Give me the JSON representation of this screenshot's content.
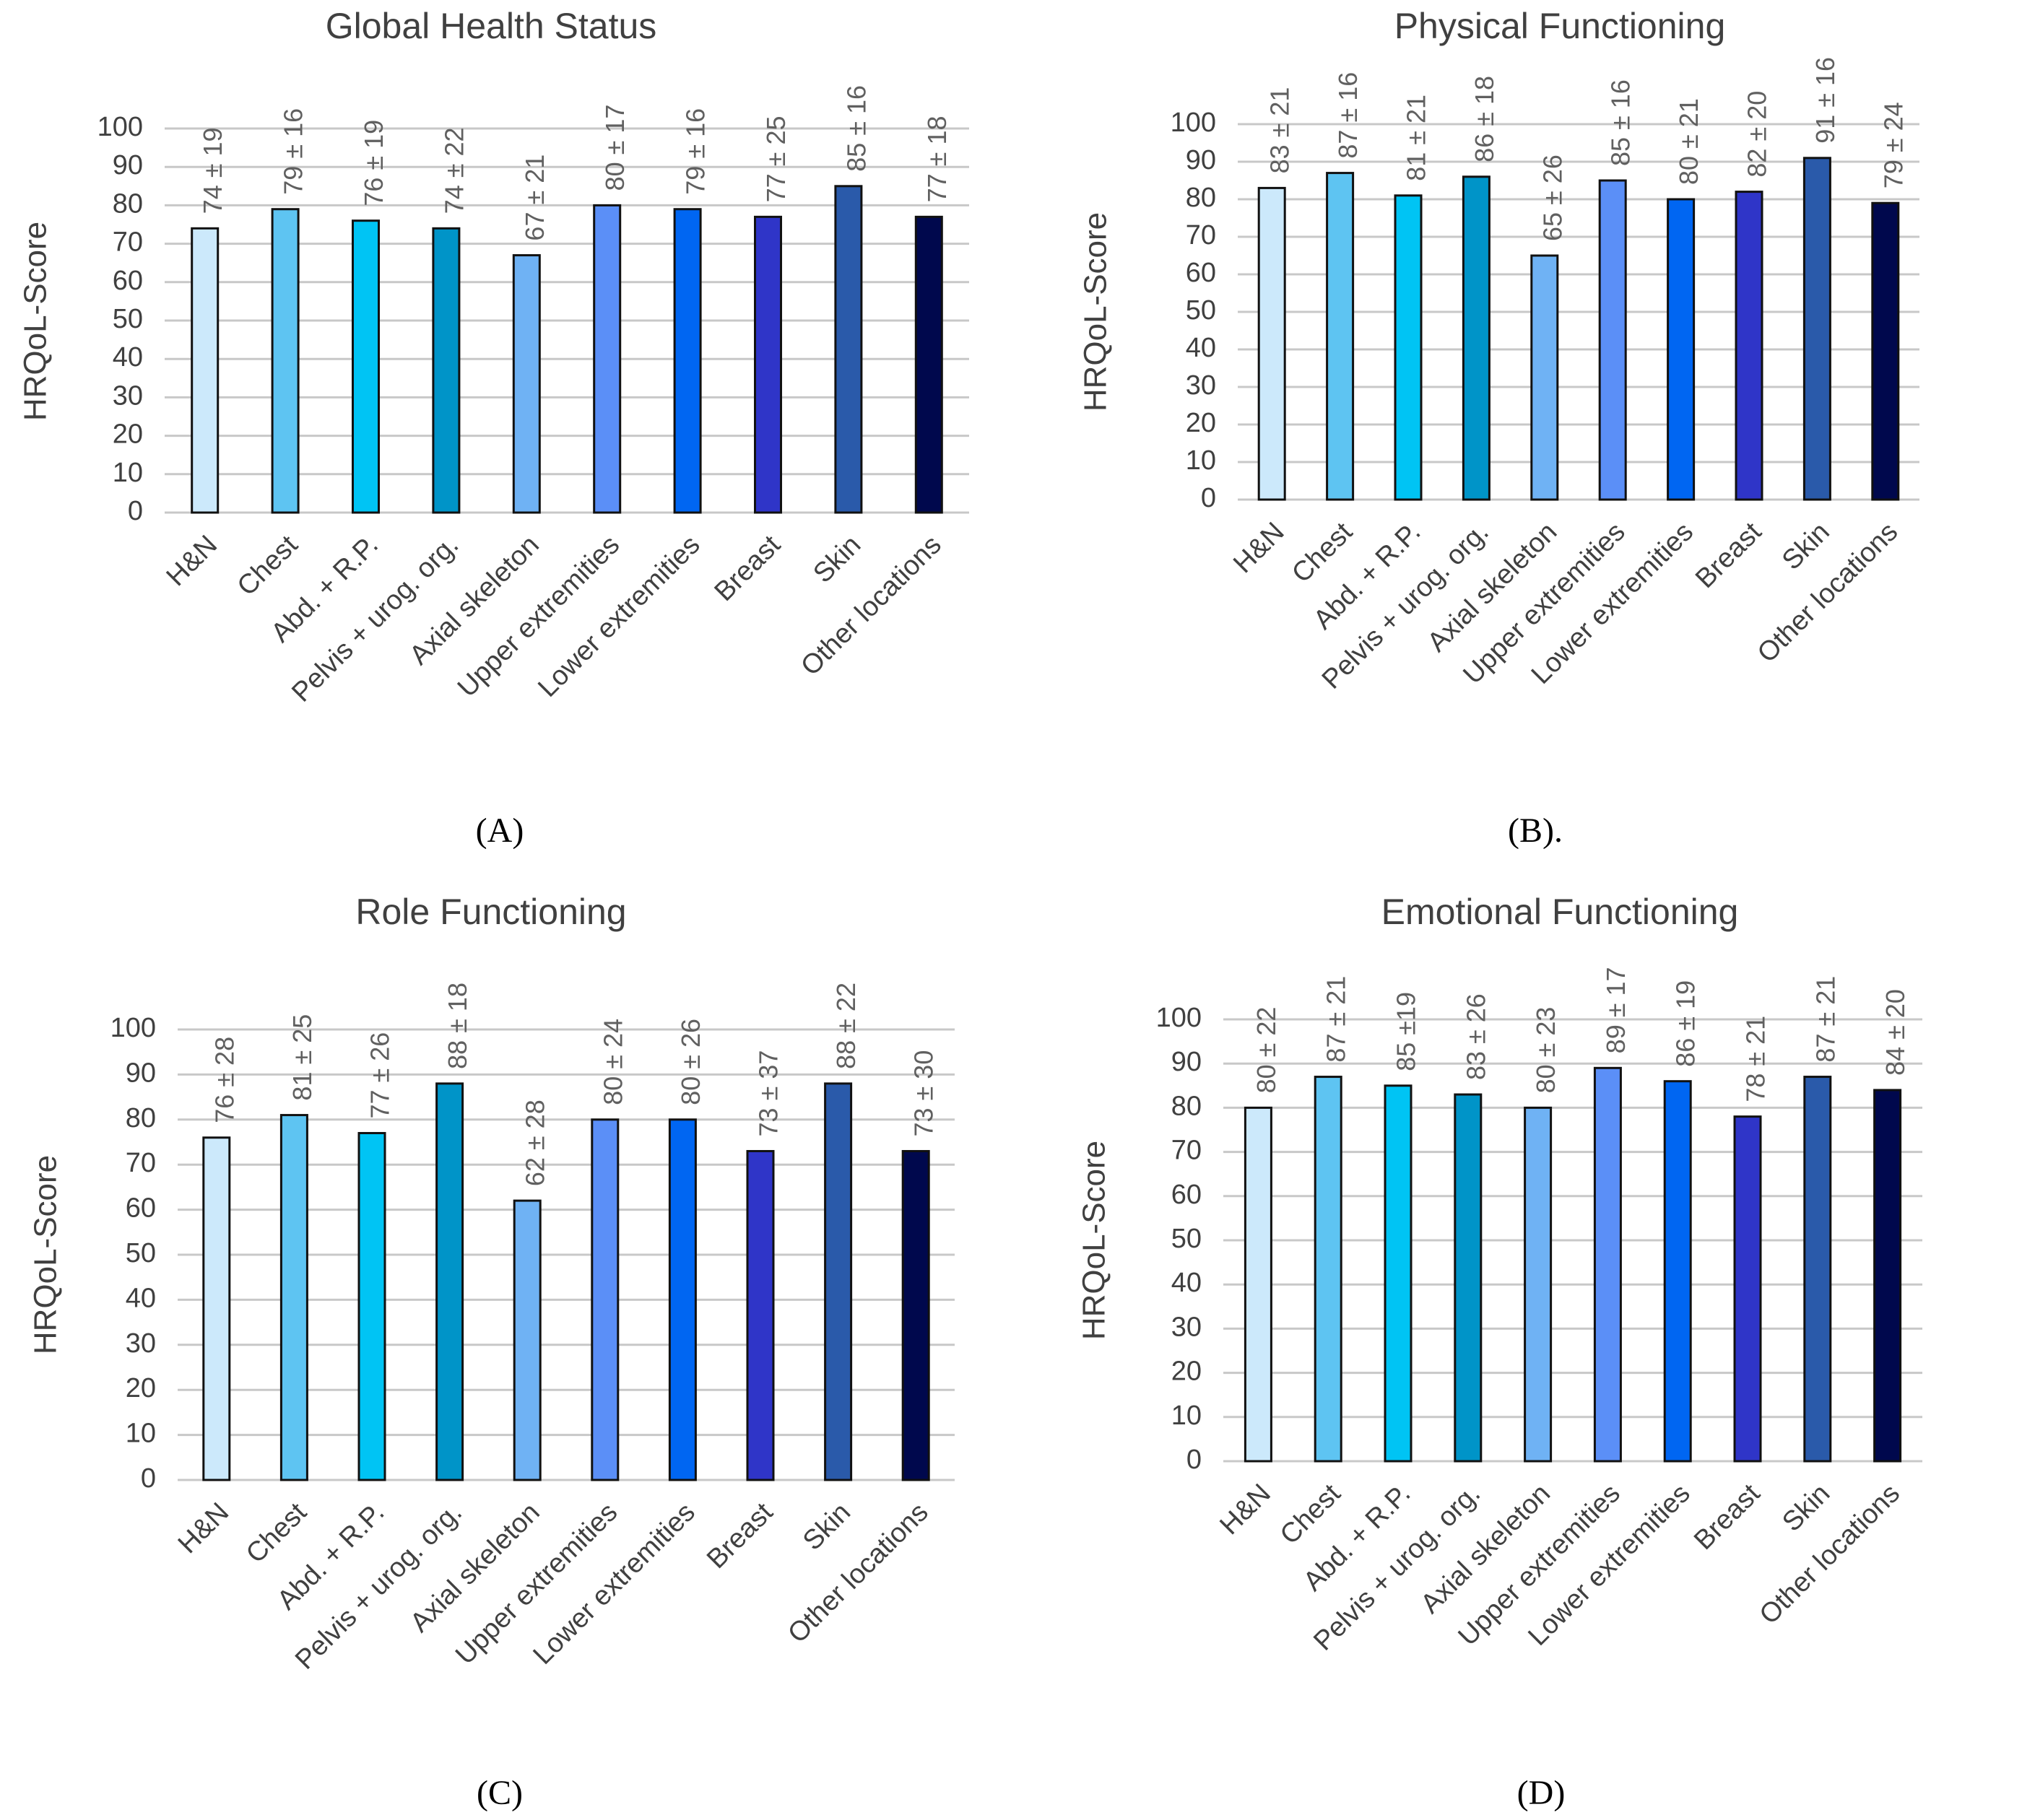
{
  "chart_data": [
    {
      "type": "bar",
      "title": "Global Health Status",
      "panel_label": "(A)",
      "ylabel": "HRQoL-Score",
      "xlabel": "",
      "ylim": [
        0,
        100
      ],
      "yticks": [
        0,
        10,
        20,
        30,
        40,
        50,
        60,
        70,
        80,
        90,
        100
      ],
      "grid": true,
      "categories": [
        "H&N",
        "Chest",
        "Abd. + R.P.",
        "Pelvis + urog. org.",
        "Axial skeleton",
        "Upper extremities",
        "Lower extremities",
        "Breast",
        "Skin",
        "Other locations"
      ],
      "values": [
        74,
        79,
        76,
        74,
        67,
        80,
        79,
        77,
        85,
        77
      ],
      "data_labels": [
        "74 ± 19",
        "79 ± 16",
        "76 ± 19",
        "74 ± 22",
        "67 ± 21",
        "80 ± 17",
        "79 ± 16",
        "77 ± 25",
        "85 ± 16",
        "77 ± 18"
      ]
    },
    {
      "type": "bar",
      "title": "Physical Functioning",
      "panel_label": "(B).",
      "ylabel": "HRQoL-Score",
      "xlabel": "",
      "ylim": [
        0,
        100
      ],
      "yticks": [
        0,
        10,
        20,
        30,
        40,
        50,
        60,
        70,
        80,
        90,
        100
      ],
      "grid": true,
      "categories": [
        "H&N",
        "Chest",
        "Abd. + R.P.",
        "Pelvis + urog. org.",
        "Axial skeleton",
        "Upper extremities",
        "Lower extremities",
        "Breast",
        "Skin",
        "Other locations"
      ],
      "values": [
        83,
        87,
        81,
        86,
        65,
        85,
        80,
        82,
        91,
        79
      ],
      "data_labels": [
        "83 ± 21",
        "87 ± 16",
        "81 ± 21",
        "86 ± 18",
        "65 ± 26",
        "85 ± 16",
        "80 ± 21",
        "82 ± 20",
        "91 ± 16",
        "79 ± 24"
      ]
    },
    {
      "type": "bar",
      "title": "Role Functioning",
      "panel_label": "(C)",
      "ylabel": "HRQoL-Score",
      "xlabel": "",
      "ylim": [
        0,
        100
      ],
      "yticks": [
        0,
        10,
        20,
        30,
        40,
        50,
        60,
        70,
        80,
        90,
        100
      ],
      "grid": true,
      "categories": [
        "H&N",
        "Chest",
        "Abd. + R.P.",
        "Pelvis + urog. org.",
        "Axial skeleton",
        "Upper extremities",
        "Lower extremities",
        "Breast",
        "Skin",
        "Other locations"
      ],
      "values": [
        76,
        81,
        77,
        88,
        62,
        80,
        80,
        73,
        88,
        73
      ],
      "data_labels": [
        "76 ± 28",
        "81 ± 25",
        "77 ± 26",
        "88 ± 18",
        "62 ± 28",
        "80 ± 24",
        "80 ± 26",
        "73 ± 37",
        "88 ± 22",
        "73 ± 30"
      ]
    },
    {
      "type": "bar",
      "title": "Emotional Functioning",
      "panel_label": "(D)",
      "ylabel": "HRQoL-Score",
      "xlabel": "",
      "ylim": [
        0,
        100
      ],
      "yticks": [
        0,
        10,
        20,
        30,
        40,
        50,
        60,
        70,
        80,
        90,
        100
      ],
      "grid": true,
      "categories": [
        "H&N",
        "Chest",
        "Abd. + R.P.",
        "Pelvis + urog. org.",
        "Axial skeleton",
        "Upper extremities",
        "Lower extremities",
        "Breast",
        "Skin",
        "Other locations"
      ],
      "values": [
        80,
        87,
        85,
        83,
        80,
        89,
        86,
        78,
        87,
        84
      ],
      "data_labels": [
        "80 ± 22",
        "87 ± 21",
        "85 ±19",
        "83 ± 26",
        "80 ± 23",
        "89 ± 17",
        "86 ± 19",
        "78 ± 21",
        "87 ± 21",
        "84 ± 20"
      ]
    }
  ],
  "bar_colors": [
    "#cce9fb",
    "#5ec4f2",
    "#00c4f4",
    "#0094c8",
    "#6fb2f4",
    "#5b8ff7",
    "#0066f2",
    "#2f35c8",
    "#2a5aaa",
    "#00084d"
  ]
}
